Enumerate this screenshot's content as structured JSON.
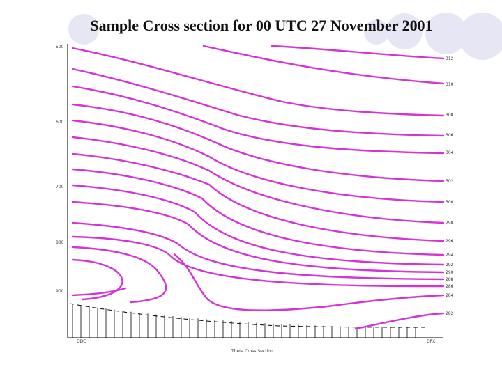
{
  "slide": {
    "title": "Sample Cross section for 00 UTC 27 November 2001"
  },
  "chart_data": {
    "type": "contour",
    "title": "",
    "xlabel": "Theta Cross Section",
    "ylabel": "",
    "y_ticks": [
      "500",
      "600",
      "700",
      "800",
      "900"
    ],
    "x_ticks": [
      "DDC",
      "DFX"
    ],
    "contour_labels": [
      "312",
      "310",
      "308",
      "306",
      "304",
      "302",
      "300",
      "298",
      "296",
      "294",
      "292",
      "290",
      "288",
      "286",
      "284",
      "282"
    ],
    "contour_color": "#d633d6",
    "grid": false
  }
}
